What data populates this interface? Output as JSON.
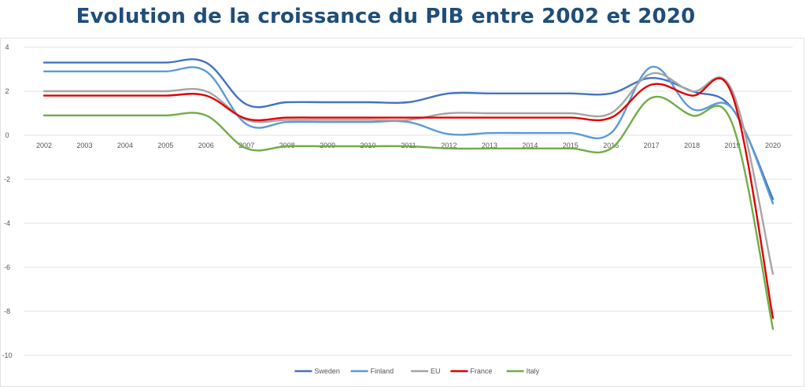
{
  "chart_data": {
    "type": "line",
    "title": "Evolution de la croissance du PIB entre 2002 et 2020",
    "xlabel": "",
    "ylabel": "",
    "x": [
      "2002",
      "2003",
      "2004",
      "2005",
      "2006",
      "2007",
      "2008",
      "2009",
      "2010",
      "2011",
      "2012",
      "2013",
      "2014",
      "2015",
      "2016",
      "2017",
      "2018",
      "2019",
      "2020"
    ],
    "ylim": [
      -10,
      4
    ],
    "yticks": [
      "4",
      "2",
      "0",
      "-2",
      "-4",
      "-6",
      "-8",
      "-10"
    ],
    "grid": true,
    "legend": "bottom",
    "series": [
      {
        "name": "Sweden",
        "color": "#4472c4",
        "values": [
          3.3,
          3.3,
          3.3,
          3.3,
          3.3,
          1.4,
          1.5,
          1.5,
          1.5,
          1.5,
          1.9,
          1.9,
          1.9,
          1.9,
          1.9,
          2.6,
          2.0,
          1.2,
          -2.9
        ]
      },
      {
        "name": "Finland",
        "color": "#5b9bd5",
        "values": [
          2.9,
          2.9,
          2.9,
          2.9,
          2.9,
          0.5,
          0.6,
          0.6,
          0.6,
          0.6,
          0.05,
          0.1,
          0.1,
          0.1,
          0.1,
          3.1,
          1.2,
          1.2,
          -3.1
        ]
      },
      {
        "name": "EU",
        "color": "#a5a5a5",
        "values": [
          2.0,
          2.0,
          2.0,
          2.0,
          2.0,
          0.7,
          0.7,
          0.7,
          0.7,
          0.7,
          1.0,
          1.0,
          1.0,
          1.0,
          1.0,
          2.8,
          2.0,
          2.0,
          -6.3
        ]
      },
      {
        "name": "France",
        "color": "#e00000",
        "values": [
          1.8,
          1.8,
          1.8,
          1.8,
          1.8,
          0.75,
          0.8,
          0.8,
          0.8,
          0.8,
          0.8,
          0.8,
          0.8,
          0.8,
          0.8,
          2.3,
          1.8,
          1.8,
          -8.3
        ]
      },
      {
        "name": "Italy",
        "color": "#70ad47",
        "values": [
          0.9,
          0.9,
          0.9,
          0.9,
          0.9,
          -0.6,
          -0.5,
          -0.5,
          -0.5,
          -0.5,
          -0.6,
          -0.6,
          -0.6,
          -0.6,
          -0.6,
          1.7,
          0.9,
          0.5,
          -8.8
        ]
      }
    ]
  }
}
